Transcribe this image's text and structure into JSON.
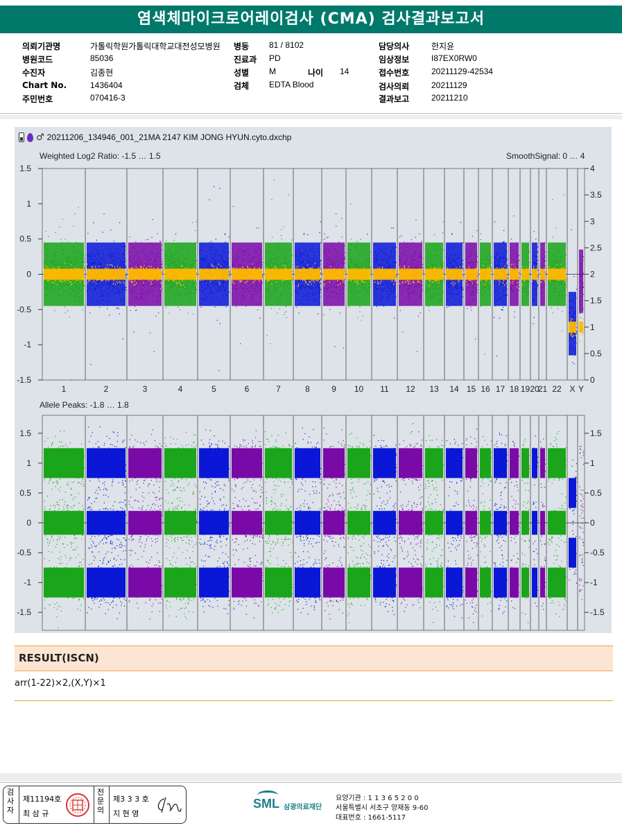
{
  "header": {
    "title": "염색체마이크로어레이검사 (CMA) 검사결과보고서"
  },
  "patient_info": {
    "col1": [
      {
        "label": "의뢰기관명",
        "value": "가톨릭학원가톨릭대학교대전성모병원"
      },
      {
        "label": "병원코드",
        "value": "85036"
      },
      {
        "label": "수진자",
        "value": "김종현"
      },
      {
        "label": "Chart No.",
        "value": "1436404"
      },
      {
        "label": "주민번호",
        "value": "070416-3"
      }
    ],
    "col2": [
      {
        "label": "병동",
        "value": "81 / 8102"
      },
      {
        "label": "진료과",
        "value": "PD"
      },
      {
        "label": "성별",
        "value": "M"
      },
      {
        "label": "검체",
        "value": "EDTA Blood"
      }
    ],
    "age": {
      "label": "나이",
      "value": "14"
    },
    "col3": [
      {
        "label": "담당의사",
        "value": "한지윤"
      },
      {
        "label": "임상정보",
        "value": "I87EX0RW0"
      },
      {
        "label": "접수번호",
        "value": "20211129-42534"
      },
      {
        "label": "검사의뢰",
        "value": "20211129"
      },
      {
        "label": "결과보고",
        "value": "20211210"
      }
    ]
  },
  "chart_panel": {
    "file_name": "20211206_134946_001_21MA 2147 KIM JONG HYUN.cyto.dxchp",
    "icons": [
      "phone-icon",
      "drop-icon",
      "male-icon"
    ]
  },
  "chart_data": [
    {
      "type": "scatter",
      "title": "Weighted Log2 Ratio: -1.5 … 1.5",
      "right_title": "SmoothSignal: 0 … 4",
      "ylim": [
        -1.5,
        1.5
      ],
      "yticks": [
        "1.5",
        "1",
        "0.5",
        "0",
        "-0.5",
        "-1",
        "-1.5"
      ],
      "y2lim": [
        0,
        4
      ],
      "y2ticks": [
        "4",
        "3.5",
        "3",
        "2.5",
        "2",
        "1.5",
        "1",
        "0.5",
        "0"
      ],
      "categories": [
        "1",
        "2",
        "3",
        "4",
        "5",
        "6",
        "7",
        "8",
        "9",
        "10",
        "11",
        "12",
        "13",
        "14",
        "15",
        "16",
        "17",
        "18",
        "19",
        "20",
        "21",
        "22",
        "X",
        "Y"
      ],
      "log2_median": [
        0,
        0,
        0,
        0,
        0,
        0,
        0,
        0,
        0,
        0,
        0,
        0,
        0,
        0,
        0,
        0,
        0,
        0,
        0,
        0,
        0,
        0,
        -0.7,
        -0.1
      ],
      "smooth_signal": [
        2,
        2,
        2,
        2,
        2,
        2,
        2,
        2,
        2,
        2,
        2,
        2,
        2,
        2,
        2,
        2,
        2,
        2,
        2,
        2,
        2,
        2,
        1,
        1
      ],
      "colors": {
        "green": "#1aa51a",
        "blue": "#0a17d6",
        "purple": "#7a0aa8",
        "smooth": "#ffb800"
      }
    },
    {
      "type": "scatter",
      "title": "Allele Peaks: -1.8 … 1.8",
      "ylim": [
        -1.8,
        1.8
      ],
      "yticks": [
        "1.5",
        "1",
        "0.5",
        "0",
        "-0.5",
        "-1",
        "-1.5"
      ],
      "categories": [
        "1",
        "2",
        "3",
        "4",
        "5",
        "6",
        "7",
        "8",
        "9",
        "10",
        "11",
        "12",
        "13",
        "14",
        "15",
        "16",
        "17",
        "18",
        "19",
        "20",
        "21",
        "22",
        "X",
        "Y"
      ],
      "autosome_peaks": [
        -1,
        0,
        1
      ],
      "x_peaks": [
        -0.5,
        0.5
      ]
    }
  ],
  "result": {
    "heading": "RESULT(ISCN)",
    "text": "arr(1-22)×2,(X,Y)×1"
  },
  "footer": {
    "inspector_label": "검사자",
    "inspector_no": "제11194호",
    "inspector_name": "최 삼 규",
    "confirm_label": "전문의",
    "confirm_no": "제3 3 3 호",
    "confirm_name": "지 현 영",
    "org_logo": "SML",
    "org_name": "삼광의료재단",
    "addr_lines": [
      "요양기관 : 1 1 3 6 5 2 0 0",
      "서울특별시 서초구 양재동 9-60",
      "대표번호 : 1661-5117"
    ]
  }
}
